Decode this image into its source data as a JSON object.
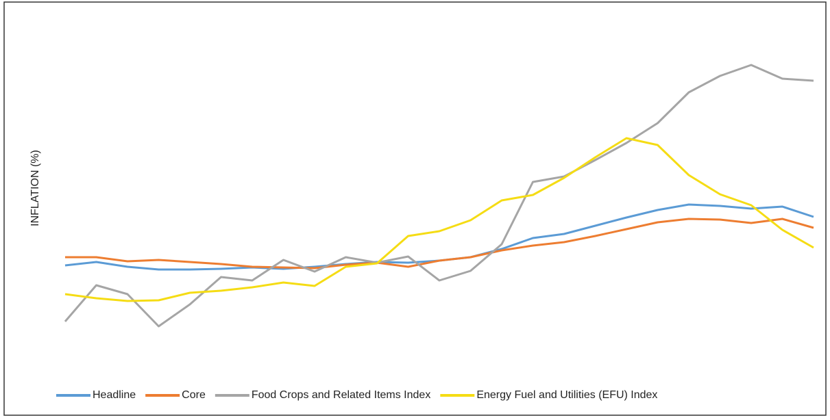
{
  "chart_data": {
    "type": "line",
    "y_label": "INFLATION (%)",
    "categories": [
      null,
      null,
      null,
      null,
      null,
      null,
      null,
      null,
      null,
      null,
      null,
      null,
      null,
      null,
      null,
      null,
      null,
      null,
      null,
      null,
      null,
      null,
      null,
      null,
      null
    ],
    "ylim": [
      0,
      10
    ],
    "series": [
      {
        "name": "Headline",
        "color": "#5b9bd5",
        "values": [
          2.74,
          2.84,
          2.7,
          2.62,
          2.62,
          2.64,
          2.68,
          2.64,
          2.7,
          2.78,
          2.84,
          2.82,
          2.88,
          2.98,
          3.22,
          3.54,
          3.66,
          3.9,
          4.14,
          4.36,
          4.52,
          4.48,
          4.4,
          4.46,
          4.16
        ]
      },
      {
        "name": "Core",
        "color": "#ed7d31",
        "values": [
          2.98,
          2.98,
          2.86,
          2.9,
          2.84,
          2.78,
          2.7,
          2.68,
          2.66,
          2.76,
          2.82,
          2.7,
          2.88,
          2.98,
          3.18,
          3.32,
          3.42,
          3.6,
          3.8,
          4.0,
          4.1,
          4.08,
          3.98,
          4.1,
          3.84
        ]
      },
      {
        "name": "Food Crops and Related Items Index",
        "color": "#a5a5a5",
        "values": [
          1.1,
          2.16,
          1.9,
          0.96,
          1.6,
          2.4,
          2.3,
          2.9,
          2.56,
          2.98,
          2.82,
          3.0,
          2.3,
          2.58,
          3.36,
          5.18,
          5.34,
          5.82,
          6.32,
          6.9,
          7.8,
          8.28,
          8.6,
          8.2,
          8.14
        ]
      },
      {
        "name": "Energy Fuel and Utilities (EFU) Index",
        "color": "#f5dc14",
        "values": [
          1.9,
          1.78,
          1.7,
          1.72,
          1.94,
          2.0,
          2.1,
          2.24,
          2.14,
          2.7,
          2.8,
          3.6,
          3.74,
          4.06,
          4.64,
          4.8,
          5.3,
          5.9,
          6.46,
          6.26,
          5.38,
          4.82,
          4.5,
          3.78,
          3.26
        ]
      }
    ]
  }
}
